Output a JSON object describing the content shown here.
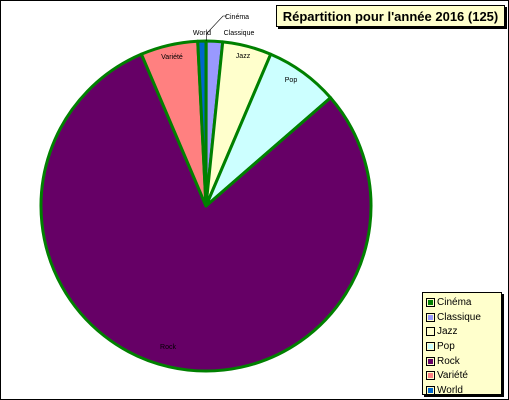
{
  "chart_data": {
    "type": "pie",
    "title": "Répartition pour l'année 2016 (125)",
    "slices": [
      {
        "label": "Cinéma",
        "value": 0.02,
        "color": "#008000"
      },
      {
        "label": "Classique",
        "value": 2,
        "color": "#9999ff"
      },
      {
        "label": "Jazz",
        "value": 6,
        "color": "#ffffcc"
      },
      {
        "label": "Pop",
        "value": 9,
        "color": "#ccffff"
      },
      {
        "label": "Rock",
        "value": 100,
        "color": "#660066"
      },
      {
        "label": "Variété",
        "value": 7,
        "color": "#ff8080"
      },
      {
        "label": "World",
        "value": 1,
        "color": "#0066cc"
      }
    ],
    "slice_border_color": "#008000",
    "legend": {
      "position": "bottom-right",
      "entries": [
        "Cinéma",
        "Classique",
        "Jazz",
        "Pop",
        "Rock",
        "Variété",
        "World"
      ]
    }
  }
}
